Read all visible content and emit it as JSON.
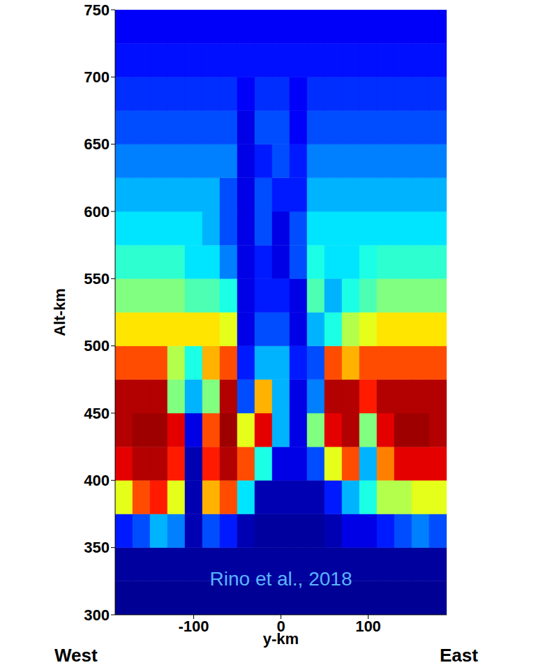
{
  "chart_data": {
    "type": "heatmap",
    "x_label": "y-km",
    "y_label": "Alt-km",
    "annotations": [
      "Rino et al., 2018",
      "West",
      "East"
    ],
    "xlim": [
      -190,
      190
    ],
    "xticks": [
      -100,
      0,
      100
    ],
    "ylim": [
      300,
      750
    ],
    "yticks": [
      300,
      350,
      400,
      450,
      500,
      550,
      600,
      650,
      700,
      750
    ],
    "grid": false,
    "zlim": [
      0,
      1
    ],
    "x": [
      -180,
      -160,
      -140,
      -120,
      -100,
      -80,
      -60,
      -40,
      -20,
      0,
      20,
      40,
      60,
      80,
      100,
      120,
      140,
      160,
      180
    ],
    "y": [
      312.5,
      337.5,
      362.5,
      387.5,
      412.5,
      437.5,
      462.5,
      487.5,
      512.5,
      537.5,
      562.5,
      587.5,
      612.5,
      637.5,
      662.5,
      687.5,
      712.5,
      737.5
    ],
    "z": [
      [
        0.02,
        0.02,
        0.02,
        0.02,
        0.02,
        0.02,
        0.02,
        0.02,
        0.02,
        0.02,
        0.02,
        0.02,
        0.02,
        0.02,
        0.02,
        0.02,
        0.02,
        0.02,
        0.02
      ],
      [
        0.03,
        0.03,
        0.03,
        0.03,
        0.03,
        0.03,
        0.03,
        0.03,
        0.03,
        0.03,
        0.03,
        0.03,
        0.03,
        0.03,
        0.03,
        0.03,
        0.03,
        0.03,
        0.03
      ],
      [
        0.15,
        0.2,
        0.3,
        0.25,
        0.05,
        0.2,
        0.15,
        0.05,
        0.03,
        0.03,
        0.03,
        0.03,
        0.05,
        0.1,
        0.1,
        0.15,
        0.2,
        0.25,
        0.2
      ],
      [
        0.6,
        0.8,
        0.85,
        0.6,
        0.05,
        0.7,
        0.8,
        0.35,
        0.05,
        0.05,
        0.05,
        0.05,
        0.15,
        0.3,
        0.4,
        0.55,
        0.55,
        0.6,
        0.6
      ],
      [
        0.9,
        0.95,
        0.95,
        0.85,
        0.05,
        0.85,
        0.95,
        0.8,
        0.4,
        0.1,
        0.1,
        0.2,
        0.6,
        0.8,
        0.3,
        0.75,
        0.9,
        0.9,
        0.9
      ],
      [
        0.95,
        0.97,
        0.97,
        0.9,
        0.1,
        0.8,
        0.97,
        0.6,
        0.9,
        0.3,
        0.1,
        0.5,
        0.9,
        0.95,
        0.5,
        0.9,
        0.97,
        0.97,
        0.95
      ],
      [
        0.95,
        0.95,
        0.95,
        0.5,
        0.3,
        0.5,
        0.95,
        0.2,
        0.7,
        0.3,
        0.1,
        0.25,
        0.95,
        0.95,
        0.85,
        0.95,
        0.95,
        0.95,
        0.95
      ],
      [
        0.8,
        0.8,
        0.8,
        0.55,
        0.4,
        0.7,
        0.8,
        0.15,
        0.3,
        0.3,
        0.15,
        0.2,
        0.8,
        0.7,
        0.8,
        0.8,
        0.8,
        0.8,
        0.8
      ],
      [
        0.65,
        0.65,
        0.65,
        0.65,
        0.65,
        0.65,
        0.6,
        0.1,
        0.2,
        0.2,
        0.1,
        0.3,
        0.4,
        0.55,
        0.6,
        0.65,
        0.65,
        0.65,
        0.65
      ],
      [
        0.5,
        0.5,
        0.5,
        0.5,
        0.45,
        0.45,
        0.4,
        0.1,
        0.15,
        0.15,
        0.1,
        0.45,
        0.3,
        0.4,
        0.45,
        0.5,
        0.5,
        0.5,
        0.5
      ],
      [
        0.42,
        0.42,
        0.42,
        0.42,
        0.35,
        0.35,
        0.25,
        0.1,
        0.15,
        0.1,
        0.2,
        0.4,
        0.35,
        0.35,
        0.4,
        0.42,
        0.42,
        0.42,
        0.42
      ],
      [
        0.35,
        0.35,
        0.35,
        0.35,
        0.35,
        0.3,
        0.2,
        0.1,
        0.2,
        0.1,
        0.2,
        0.35,
        0.35,
        0.35,
        0.35,
        0.35,
        0.35,
        0.35,
        0.35
      ],
      [
        0.3,
        0.3,
        0.3,
        0.3,
        0.3,
        0.3,
        0.2,
        0.1,
        0.2,
        0.15,
        0.15,
        0.3,
        0.3,
        0.3,
        0.3,
        0.3,
        0.3,
        0.3,
        0.3
      ],
      [
        0.25,
        0.25,
        0.25,
        0.25,
        0.25,
        0.25,
        0.25,
        0.1,
        0.15,
        0.2,
        0.15,
        0.25,
        0.25,
        0.25,
        0.25,
        0.25,
        0.25,
        0.25,
        0.25
      ],
      [
        0.2,
        0.2,
        0.2,
        0.2,
        0.2,
        0.2,
        0.2,
        0.1,
        0.2,
        0.2,
        0.12,
        0.2,
        0.2,
        0.2,
        0.2,
        0.2,
        0.2,
        0.2,
        0.2
      ],
      [
        0.17,
        0.17,
        0.17,
        0.17,
        0.17,
        0.17,
        0.17,
        0.12,
        0.17,
        0.17,
        0.12,
        0.17,
        0.17,
        0.17,
        0.17,
        0.17,
        0.17,
        0.17,
        0.17
      ],
      [
        0.14,
        0.14,
        0.14,
        0.14,
        0.14,
        0.14,
        0.14,
        0.14,
        0.14,
        0.14,
        0.14,
        0.14,
        0.14,
        0.14,
        0.14,
        0.14,
        0.14,
        0.14,
        0.14
      ],
      [
        0.12,
        0.12,
        0.12,
        0.12,
        0.12,
        0.12,
        0.12,
        0.12,
        0.12,
        0.12,
        0.12,
        0.12,
        0.12,
        0.12,
        0.12,
        0.12,
        0.12,
        0.12,
        0.12
      ]
    ]
  }
}
